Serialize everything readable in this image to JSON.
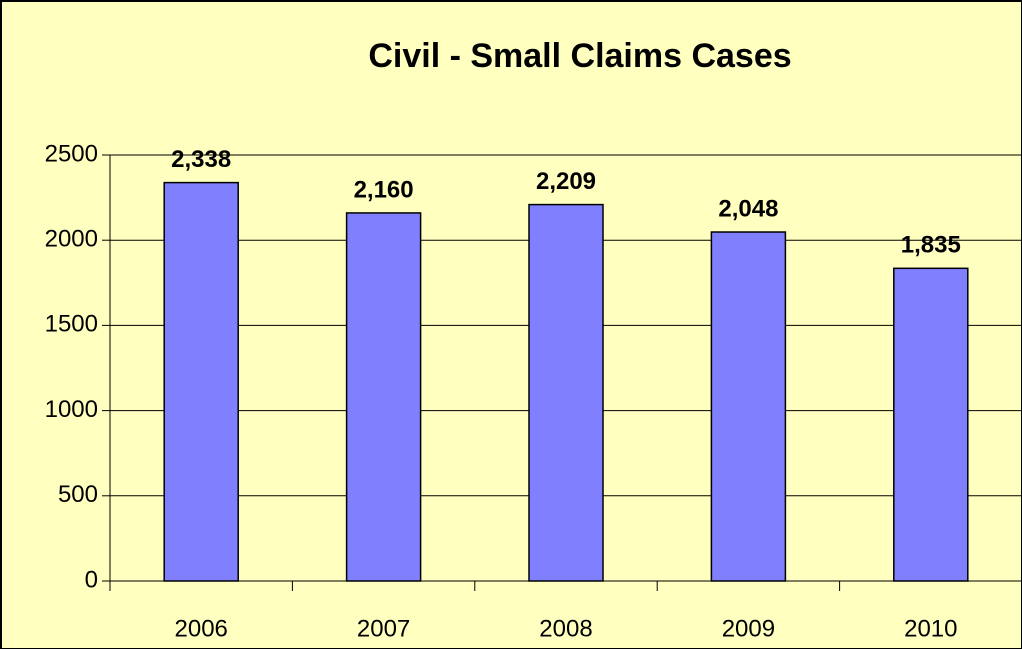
{
  "chart_data": {
    "type": "bar",
    "title": "Civil - Small Claims Cases",
    "categories": [
      "2006",
      "2007",
      "2008",
      "2009",
      "2010"
    ],
    "values": [
      2338,
      2160,
      2209,
      2048,
      1835
    ],
    "value_labels": [
      "2,338",
      "2,160",
      "2,209",
      "2,048",
      "1,835"
    ],
    "color": "#8080ff",
    "ylim": [
      0,
      2500
    ],
    "yticks": [
      0,
      500,
      1000,
      1500,
      2000,
      2500
    ],
    "grid": true
  }
}
